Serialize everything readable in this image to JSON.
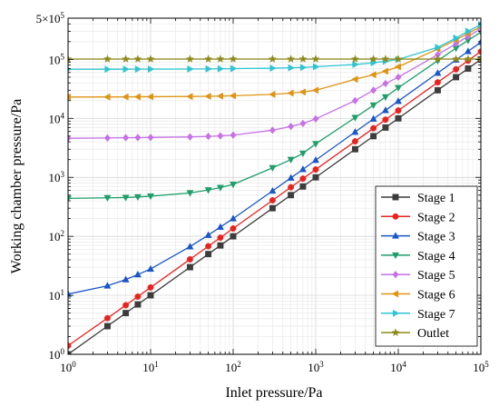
{
  "chart_data": {
    "type": "line",
    "title": "",
    "xlabel": "Inlet pressure/Pa",
    "ylabel": "Working chamber pressure/Pa",
    "xscale": "log",
    "yscale": "log",
    "xlim": [
      1,
      100000
    ],
    "ylim": [
      1,
      500000
    ],
    "grid": true,
    "legend_position": "bottom-right",
    "x_tick_labels": [
      {
        "value": 1,
        "base": "10",
        "exp": "0"
      },
      {
        "value": 10,
        "base": "10",
        "exp": "1"
      },
      {
        "value": 100,
        "base": "10",
        "exp": "2"
      },
      {
        "value": 1000,
        "base": "10",
        "exp": "3"
      },
      {
        "value": 10000,
        "base": "10",
        "exp": "4"
      },
      {
        "value": 100000,
        "base": "10",
        "exp": "5"
      }
    ],
    "y_tick_labels": [
      {
        "value": 1,
        "base": "10",
        "exp": "0"
      },
      {
        "value": 10,
        "base": "10",
        "exp": "1"
      },
      {
        "value": 100,
        "base": "10",
        "exp": "2"
      },
      {
        "value": 1000,
        "base": "10",
        "exp": "3"
      },
      {
        "value": 10000,
        "base": "10",
        "exp": "4"
      },
      {
        "value": 100000,
        "base": "10",
        "exp": "5"
      },
      {
        "value": 500000,
        "base": "5×10",
        "exp": "5"
      }
    ],
    "x": [
      1,
      3,
      5,
      7,
      10,
      30,
      50,
      70,
      100,
      300,
      500,
      700,
      1000,
      3000,
      5000,
      7000,
      10000,
      30000,
      50000,
      70000,
      100000
    ],
    "series": [
      {
        "name": "Stage 1",
        "color": "#3c3c3c",
        "marker": "square",
        "values": [
          1,
          3,
          5,
          7,
          10,
          30,
          50,
          70,
          100,
          300,
          500,
          700,
          1000,
          3000,
          5000,
          7000,
          10000,
          30000,
          50000,
          70000,
          100000
        ]
      },
      {
        "name": "Stage 2",
        "color": "#e8231f",
        "marker": "circle",
        "values": [
          1.4,
          4.1,
          6.8,
          9.5,
          13.6,
          40.8,
          68,
          95,
          136,
          408,
          680,
          952,
          1360,
          4080,
          6800,
          9520,
          13600,
          40800,
          68000,
          95200,
          136000
        ]
      },
      {
        "name": "Stage 3",
        "color": "#1a56c6",
        "marker": "triangle-up",
        "values": [
          10.5,
          14.5,
          18.5,
          22.5,
          28,
          67,
          105,
          144,
          200,
          590,
          980,
          1370,
          1960,
          5880,
          9800,
          13700,
          19600,
          58800,
          98000,
          137000,
          196000
        ]
      },
      {
        "name": "Stage 4",
        "color": "#1f9e6a",
        "marker": "triangle-down",
        "values": [
          440,
          450,
          455,
          465,
          480,
          545,
          610,
          670,
          760,
          1450,
          2000,
          2550,
          3700,
          10300,
          16700,
          23000,
          33000,
          95000,
          155000,
          210000,
          290000
        ]
      },
      {
        "name": "Stage 5",
        "color": "#c671e6",
        "marker": "diamond",
        "values": [
          4600,
          4650,
          4700,
          4720,
          4750,
          4850,
          4950,
          5050,
          5200,
          6300,
          7300,
          8200,
          9800,
          20000,
          30000,
          39000,
          50000,
          120000,
          185000,
          245000,
          330000
        ]
      },
      {
        "name": "Stage 6",
        "color": "#df9414",
        "marker": "triangle-left",
        "values": [
          23000,
          23100,
          23150,
          23200,
          23300,
          23500,
          23700,
          23900,
          24200,
          25500,
          26800,
          28000,
          30000,
          46000,
          55000,
          63000,
          75000,
          150000,
          215000,
          275000,
          360000
        ]
      },
      {
        "name": "Stage 7",
        "color": "#2fc4d2",
        "marker": "triangle-right",
        "values": [
          68000,
          68100,
          68200,
          68300,
          68400,
          68700,
          69000,
          69300,
          69800,
          71000,
          72000,
          73000,
          75000,
          82000,
          88000,
          93000,
          100000,
          160000,
          230000,
          300000,
          390000
        ]
      },
      {
        "name": "Outlet",
        "color": "#8c8a1a",
        "marker": "star",
        "values": [
          101325,
          101325,
          101325,
          101325,
          101325,
          101325,
          101325,
          101325,
          101325,
          101325,
          101325,
          101325,
          101325,
          101325,
          101325,
          101325,
          101325,
          101325,
          101325,
          101325,
          101325
        ]
      }
    ]
  }
}
